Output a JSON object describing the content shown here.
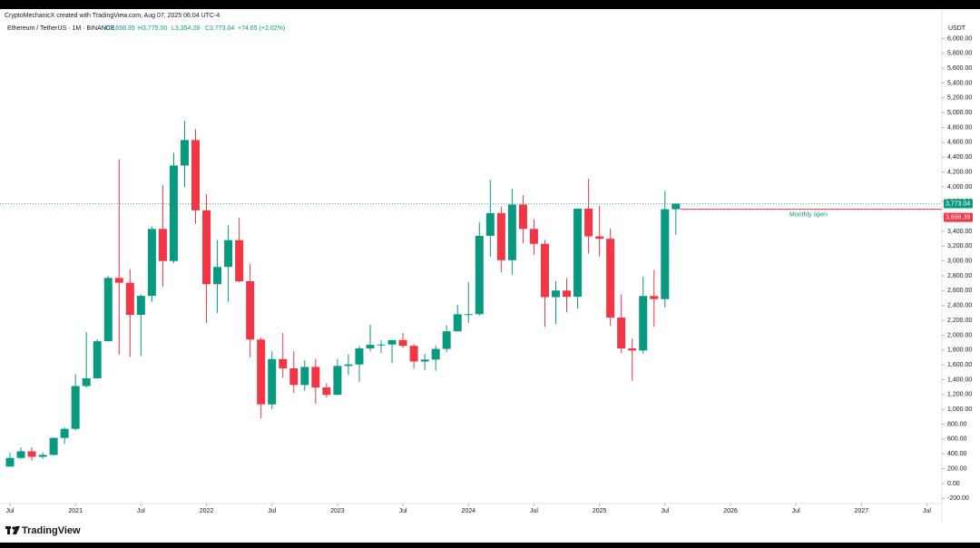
{
  "chart_data": {
    "type": "candlestick",
    "header": "CryptoMechanicX created with TradingView.com, Aug 07, 2025 06:04 UTC-4",
    "legend": {
      "symbol": "Ethereum / TetherUS · 1M · BINANCE",
      "open": "O3,698.39",
      "high": "H3,775.00",
      "low": "L3,354.28",
      "close": "C3,773.04",
      "change": "+74.65 (+2.02%)"
    },
    "currency": "USDT",
    "brand": "TradingView",
    "up_color": "#089981",
    "down_color": "#f23645",
    "x": [
      "2020-07",
      "2020-08",
      "2020-09",
      "2020-10",
      "2020-11",
      "2020-12",
      "2021-01",
      "2021-02",
      "2021-03",
      "2021-04",
      "2021-05",
      "2021-06",
      "2021-07",
      "2021-08",
      "2021-09",
      "2021-10",
      "2021-11",
      "2021-12",
      "2022-01",
      "2022-02",
      "2022-03",
      "2022-04",
      "2022-05",
      "2022-06",
      "2022-07",
      "2022-08",
      "2022-09",
      "2022-10",
      "2022-11",
      "2022-12",
      "2023-01",
      "2023-02",
      "2023-03",
      "2023-04",
      "2023-05",
      "2023-06",
      "2023-07",
      "2023-08",
      "2023-09",
      "2023-10",
      "2023-11",
      "2023-12",
      "2024-01",
      "2024-02",
      "2024-03",
      "2024-04",
      "2024-05",
      "2024-06",
      "2024-07",
      "2024-08",
      "2024-09",
      "2024-10",
      "2024-11",
      "2024-12",
      "2025-01",
      "2025-02",
      "2025-03",
      "2025-04",
      "2025-05",
      "2025-06",
      "2025-07",
      "2025-08"
    ],
    "open": [
      228,
      345,
      434,
      360,
      386,
      615,
      737,
      1314,
      1418,
      1918,
      2772,
      2707,
      2274,
      2530,
      3433,
      3000,
      4288,
      4631,
      3683,
      2688,
      2920,
      3281,
      2727,
      1941,
      1067,
      1678,
      1553,
      1328,
      1572,
      1295,
      1196,
      1585,
      1605,
      1822,
      1869,
      1874,
      1934,
      1856,
      1645,
      1671,
      1815,
      2052,
      2282,
      2283,
      3340,
      3646,
      3011,
      3762,
      3433,
      3231,
      2513,
      2602,
      2518,
      3706,
      3332,
      3300,
      2237,
      1822,
      1794,
      2528,
      2486,
      3698.39
    ],
    "high": [
      415,
      488,
      489,
      420,
      622,
      755,
      1475,
      2041,
      1943,
      2797,
      4372,
      2890,
      2551,
      3466,
      4027,
      4460,
      4891,
      4778,
      3900,
      3282,
      3481,
      3580,
      2960,
      1970,
      1785,
      2030,
      1788,
      1663,
      1680,
      1350,
      1680,
      1740,
      1857,
      2141,
      1930,
      1930,
      2029,
      1880,
      1750,
      1860,
      2130,
      2410,
      2715,
      3522,
      4093,
      3730,
      3975,
      3887,
      3563,
      3283,
      2728,
      2769,
      3682,
      4108,
      3744,
      3435,
      2550,
      1955,
      2788,
      2880,
      3941,
      3775
    ],
    "low": [
      225,
      335,
      308,
      335,
      374,
      535,
      714,
      1293,
      1431,
      1934,
      1737,
      1707,
      1718,
      2450,
      2651,
      2970,
      3998,
      3503,
      2159,
      2300,
      2450,
      2711,
      1700,
      880,
      1001,
      1422,
      1220,
      1250,
      1075,
      1160,
      1190,
      1460,
      1370,
      1780,
      1760,
      1620,
      1830,
      1550,
      1530,
      1520,
      1770,
      2050,
      2166,
      2264,
      3056,
      2852,
      2817,
      3240,
      3085,
      2111,
      2150,
      2308,
      2357,
      3100,
      3060,
      2125,
      1760,
      1385,
      1750,
      2110,
      2373,
      3354.28
    ],
    "close": [
      345,
      434,
      360,
      386,
      615,
      737,
      1314,
      1418,
      1918,
      2772,
      2707,
      2274,
      2530,
      3433,
      3000,
      4288,
      4631,
      3683,
      2688,
      2920,
      3281,
      2727,
      1941,
      1067,
      1678,
      1553,
      1328,
      1572,
      1295,
      1196,
      1585,
      1605,
      1822,
      1869,
      1874,
      1934,
      1856,
      1645,
      1671,
      1815,
      2052,
      2282,
      2283,
      3340,
      3646,
      3011,
      3762,
      3433,
      3231,
      2513,
      2602,
      2518,
      3706,
      3332,
      3300,
      2237,
      1822,
      1794,
      2528,
      2486,
      3698.39,
      3773.04
    ],
    "xticks": [
      {
        "value": "2020-07",
        "label": "Jul"
      },
      {
        "value": "2021-01",
        "label": "2021"
      },
      {
        "value": "2021-07",
        "label": "Jul"
      },
      {
        "value": "2022-01",
        "label": "2022"
      },
      {
        "value": "2022-07",
        "label": "Jul"
      },
      {
        "value": "2023-01",
        "label": "2023"
      },
      {
        "value": "2023-07",
        "label": "Jul"
      },
      {
        "value": "2024-01",
        "label": "2024"
      },
      {
        "value": "2024-07",
        "label": "Jul"
      },
      {
        "value": "2025-01",
        "label": "2025"
      },
      {
        "value": "2025-07",
        "label": "Jul"
      },
      {
        "value": "2026-01",
        "label": "2026"
      },
      {
        "value": "2026-07",
        "label": "Jul"
      },
      {
        "value": "2027-01",
        "label": "2027"
      },
      {
        "value": "2027-07",
        "label": "Jul"
      }
    ],
    "ylim": [
      -270,
      6250
    ],
    "yticks": [
      {
        "value": -200,
        "label": "-200.00"
      },
      {
        "value": 0,
        "label": "0.00"
      },
      {
        "value": 200,
        "label": "200.00"
      },
      {
        "value": 400,
        "label": "400.00"
      },
      {
        "value": 600,
        "label": "600.00"
      },
      {
        "value": 800,
        "label": "800.00"
      },
      {
        "value": 1000,
        "label": "1,000.00"
      },
      {
        "value": 1200,
        "label": "1,200.00"
      },
      {
        "value": 1400,
        "label": "1,400.00"
      },
      {
        "value": 1600,
        "label": "1,600.00"
      },
      {
        "value": 1800,
        "label": "1,800.00"
      },
      {
        "value": 2000,
        "label": "2,000.00"
      },
      {
        "value": 2200,
        "label": "2,200.00"
      },
      {
        "value": 2400,
        "label": "2,400.00"
      },
      {
        "value": 2600,
        "label": "2,600.00"
      },
      {
        "value": 2800,
        "label": "2,800.00"
      },
      {
        "value": 3000,
        "label": "3,000.00"
      },
      {
        "value": 3200,
        "label": "3,200.00"
      },
      {
        "value": 3400,
        "label": "3,400.00"
      },
      {
        "value": 3600,
        "label": "3,600.00"
      },
      {
        "value": 3800,
        "label": "3,800.00"
      },
      {
        "value": 4000,
        "label": "4,000.00"
      },
      {
        "value": 4200,
        "label": "4,200.00"
      },
      {
        "value": 4400,
        "label": "4,400.00"
      },
      {
        "value": 4600,
        "label": "4,600.00"
      },
      {
        "value": 4800,
        "label": "4,800.00"
      },
      {
        "value": 5000,
        "label": "5,000.00"
      },
      {
        "value": 5200,
        "label": "5,200.00"
      },
      {
        "value": 5400,
        "label": "5,400.00"
      },
      {
        "value": 5600,
        "label": "5,600.00"
      },
      {
        "value": 5800,
        "label": "5,800.00"
      },
      {
        "value": 6000,
        "label": "6,000.00"
      }
    ],
    "last_price": {
      "value": 3773.04,
      "label": "3,773.04"
    },
    "monthly_open": {
      "value": 3698.39,
      "label": "3,698.39",
      "text": "Monthly open"
    }
  }
}
